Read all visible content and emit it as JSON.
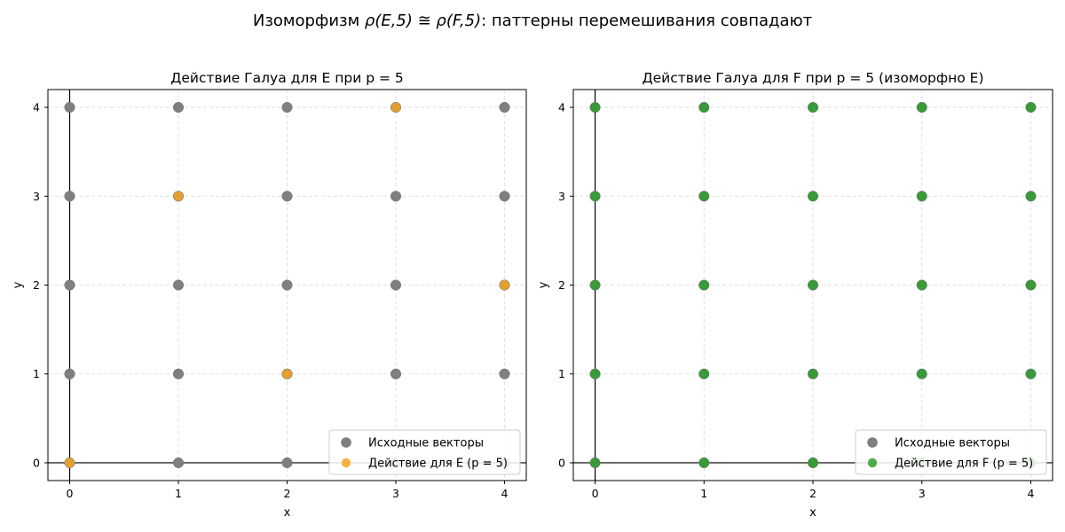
{
  "figure": {
    "title_text": "Изоморфизм ",
    "title_math": "ρ(E,5) ≅ ρ(F,5)",
    "title_tail": ": паттерны перемешивания совпадают"
  },
  "chart_data": [
    {
      "type": "scatter",
      "title": "Действие Галуа для E при p = 5",
      "xlabel": "x",
      "ylabel": "y",
      "xlim": [
        -0.2,
        4.2
      ],
      "ylim": [
        -0.2,
        4.2
      ],
      "xticks": [
        0,
        1,
        2,
        3,
        4
      ],
      "yticks": [
        0,
        1,
        2,
        3,
        4
      ],
      "grid": true,
      "legend_position": "bottom-right",
      "series": [
        {
          "name": "Исходные векторы",
          "color": "#7f7f7f",
          "points": [
            [
              0,
              0
            ],
            [
              0,
              1
            ],
            [
              0,
              2
            ],
            [
              0,
              3
            ],
            [
              0,
              4
            ],
            [
              1,
              0
            ],
            [
              1,
              1
            ],
            [
              1,
              2
            ],
            [
              1,
              3
            ],
            [
              1,
              4
            ],
            [
              2,
              0
            ],
            [
              2,
              1
            ],
            [
              2,
              2
            ],
            [
              2,
              3
            ],
            [
              2,
              4
            ],
            [
              3,
              0
            ],
            [
              3,
              1
            ],
            [
              3,
              2
            ],
            [
              3,
              3
            ],
            [
              3,
              4
            ],
            [
              4,
              0
            ],
            [
              4,
              1
            ],
            [
              4,
              2
            ],
            [
              4,
              3
            ],
            [
              4,
              4
            ]
          ]
        },
        {
          "name": "Действие для E (p = 5)",
          "color": "#f5a623",
          "points": [
            [
              0,
              0
            ],
            [
              1,
              3
            ],
            [
              2,
              1
            ],
            [
              3,
              4
            ],
            [
              4,
              2
            ]
          ]
        }
      ]
    },
    {
      "type": "scatter",
      "title": "Действие Галуа для F при p = 5 (изоморфно E)",
      "xlabel": "x",
      "ylabel": "y",
      "xlim": [
        -0.2,
        4.2
      ],
      "ylim": [
        -0.2,
        4.2
      ],
      "xticks": [
        0,
        1,
        2,
        3,
        4
      ],
      "yticks": [
        0,
        1,
        2,
        3,
        4
      ],
      "grid": true,
      "legend_position": "bottom-right",
      "series": [
        {
          "name": "Исходные векторы",
          "color": "#7f7f7f",
          "points": [
            [
              0,
              0
            ],
            [
              0,
              1
            ],
            [
              0,
              2
            ],
            [
              0,
              3
            ],
            [
              0,
              4
            ],
            [
              1,
              0
            ],
            [
              1,
              1
            ],
            [
              1,
              2
            ],
            [
              1,
              3
            ],
            [
              1,
              4
            ],
            [
              2,
              0
            ],
            [
              2,
              1
            ],
            [
              2,
              2
            ],
            [
              2,
              3
            ],
            [
              2,
              4
            ],
            [
              3,
              0
            ],
            [
              3,
              1
            ],
            [
              3,
              2
            ],
            [
              3,
              3
            ],
            [
              3,
              4
            ],
            [
              4,
              0
            ],
            [
              4,
              1
            ],
            [
              4,
              2
            ],
            [
              4,
              3
            ],
            [
              4,
              4
            ]
          ]
        },
        {
          "name": "Действие для F (p = 5)",
          "color": "#2ca02c",
          "points": [
            [
              0,
              0
            ],
            [
              0,
              1
            ],
            [
              0,
              2
            ],
            [
              0,
              3
            ],
            [
              0,
              4
            ],
            [
              1,
              0
            ],
            [
              1,
              1
            ],
            [
              1,
              2
            ],
            [
              1,
              3
            ],
            [
              1,
              4
            ],
            [
              2,
              0
            ],
            [
              2,
              1
            ],
            [
              2,
              2
            ],
            [
              2,
              3
            ],
            [
              2,
              4
            ],
            [
              3,
              0
            ],
            [
              3,
              1
            ],
            [
              3,
              2
            ],
            [
              3,
              3
            ],
            [
              3,
              4
            ],
            [
              4,
              0
            ],
            [
              4,
              1
            ],
            [
              4,
              2
            ],
            [
              4,
              3
            ],
            [
              4,
              4
            ]
          ]
        }
      ]
    }
  ]
}
